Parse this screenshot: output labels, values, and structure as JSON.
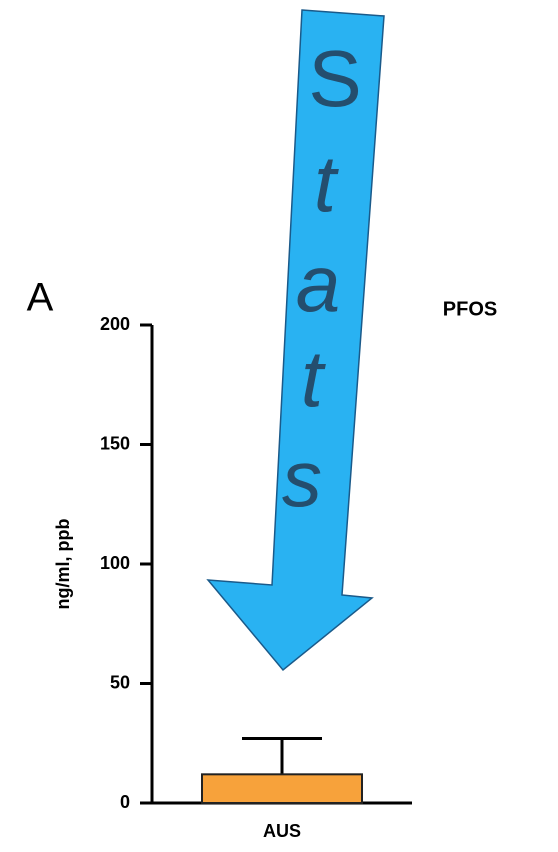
{
  "chart_data": {
    "type": "bar",
    "title": "PFOS",
    "panel_label": "A",
    "y_label": "ng/ml, ppb",
    "categories": [
      "AUS"
    ],
    "values": [
      12
    ],
    "errors": [
      15
    ],
    "color": "#f7a23b",
    "ylim": [
      0,
      200
    ],
    "yticks": [
      0,
      50,
      100,
      150,
      200
    ],
    "annotation_letters": [
      "S",
      "t",
      "a",
      "t",
      "s"
    ]
  }
}
